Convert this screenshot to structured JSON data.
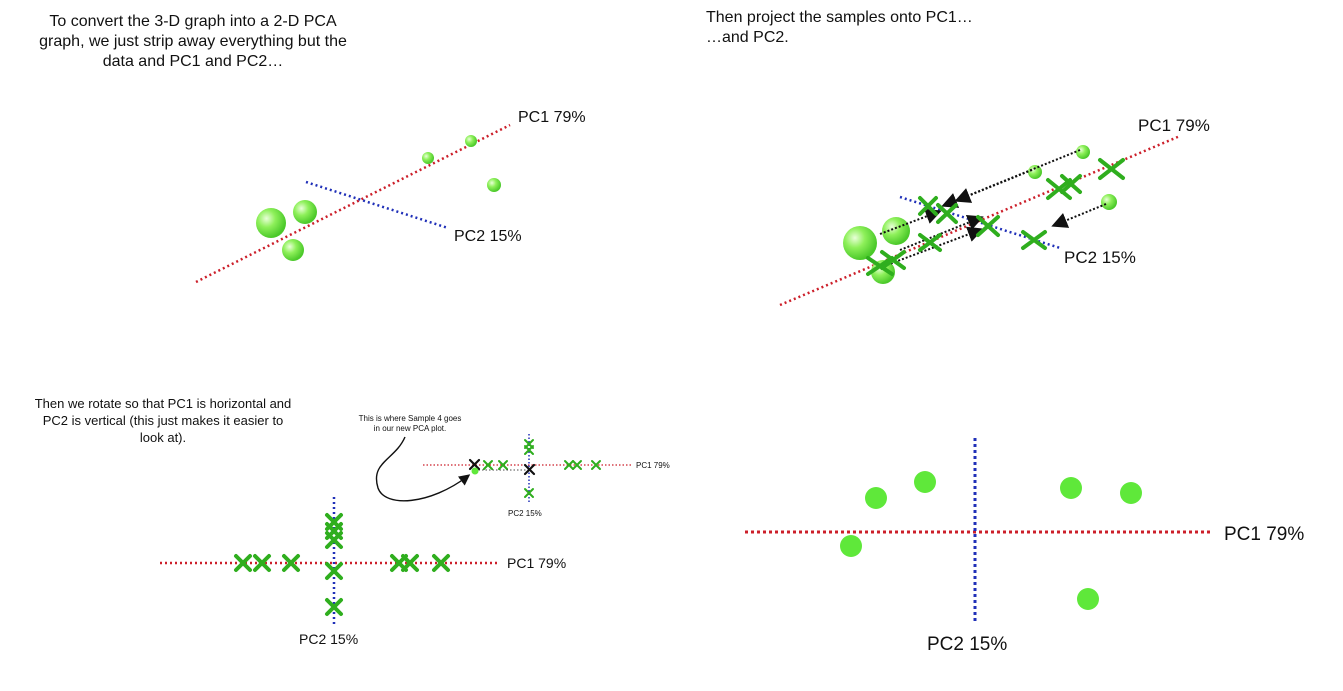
{
  "panels": {
    "top_left": {
      "caption_lines": [
        "To convert the 3-D graph into a 2-D PCA",
        "graph, we just strip away everything but the",
        "data and PC1 and PC2…"
      ],
      "pc1_label": "PC1 79%",
      "pc2_label": "PC2 15%"
    },
    "top_right": {
      "caption_lines": [
        "Then project the samples onto PC1…",
        "…and PC2."
      ],
      "pc1_label": "PC1 79%",
      "pc2_label": "PC2 15%"
    },
    "bottom_left": {
      "caption_lines": [
        "Then we rotate so that PC1 is horizontal and",
        "PC2 is vertical (this just makes it easier to",
        "look at)."
      ],
      "callout_lines": [
        "This is where Sample 4 goes",
        "in our new PCA plot."
      ],
      "pc1_label": "PC1 79%",
      "pc2_label": "PC2 15%",
      "inset_pc1_label": "PC1 79%",
      "inset_pc2_label": "PC2 15%"
    },
    "bottom_right": {
      "pc1_label": "PC1 79%",
      "pc2_label": "PC2 15%"
    }
  },
  "colors": {
    "pc1_axis": "#cc1f2a",
    "pc2_axis": "#2030b8",
    "sample_green": "#5fe83a",
    "projection_green": "#2fae1e",
    "arrow": "#111111"
  }
}
